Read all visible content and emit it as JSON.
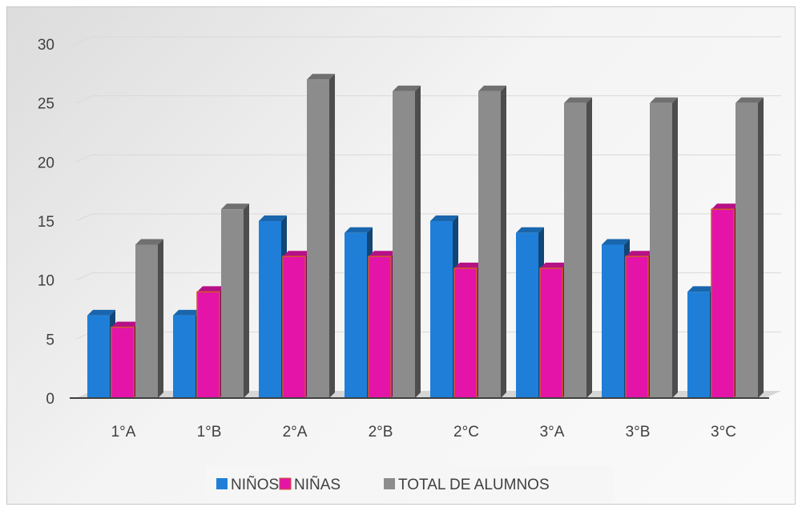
{
  "chart_data": {
    "type": "bar",
    "title": "",
    "xlabel": "",
    "ylabel": "",
    "categories": [
      "1°A",
      "1°B",
      "2°A",
      "2°B",
      "2°C",
      "3°A",
      "3°B",
      "3°C"
    ],
    "series": [
      {
        "name": "NIÑOS",
        "values": [
          7,
          7,
          15,
          14,
          15,
          14,
          13,
          9
        ],
        "color": "#1f7fd8"
      },
      {
        "name": "NIÑAS",
        "values": [
          6,
          9,
          12,
          12,
          11,
          11,
          12,
          16
        ],
        "color": "#e414a8"
      },
      {
        "name": "TOTAL DE ALUMNOS",
        "values": [
          13,
          16,
          27,
          26,
          26,
          25,
          25,
          25
        ],
        "color": "#8c8c8c"
      }
    ],
    "ylim": [
      0,
      30
    ],
    "yticks": [
      0,
      5,
      10,
      15,
      20,
      25,
      30
    ],
    "grid": true,
    "legend_position": "bottom"
  }
}
